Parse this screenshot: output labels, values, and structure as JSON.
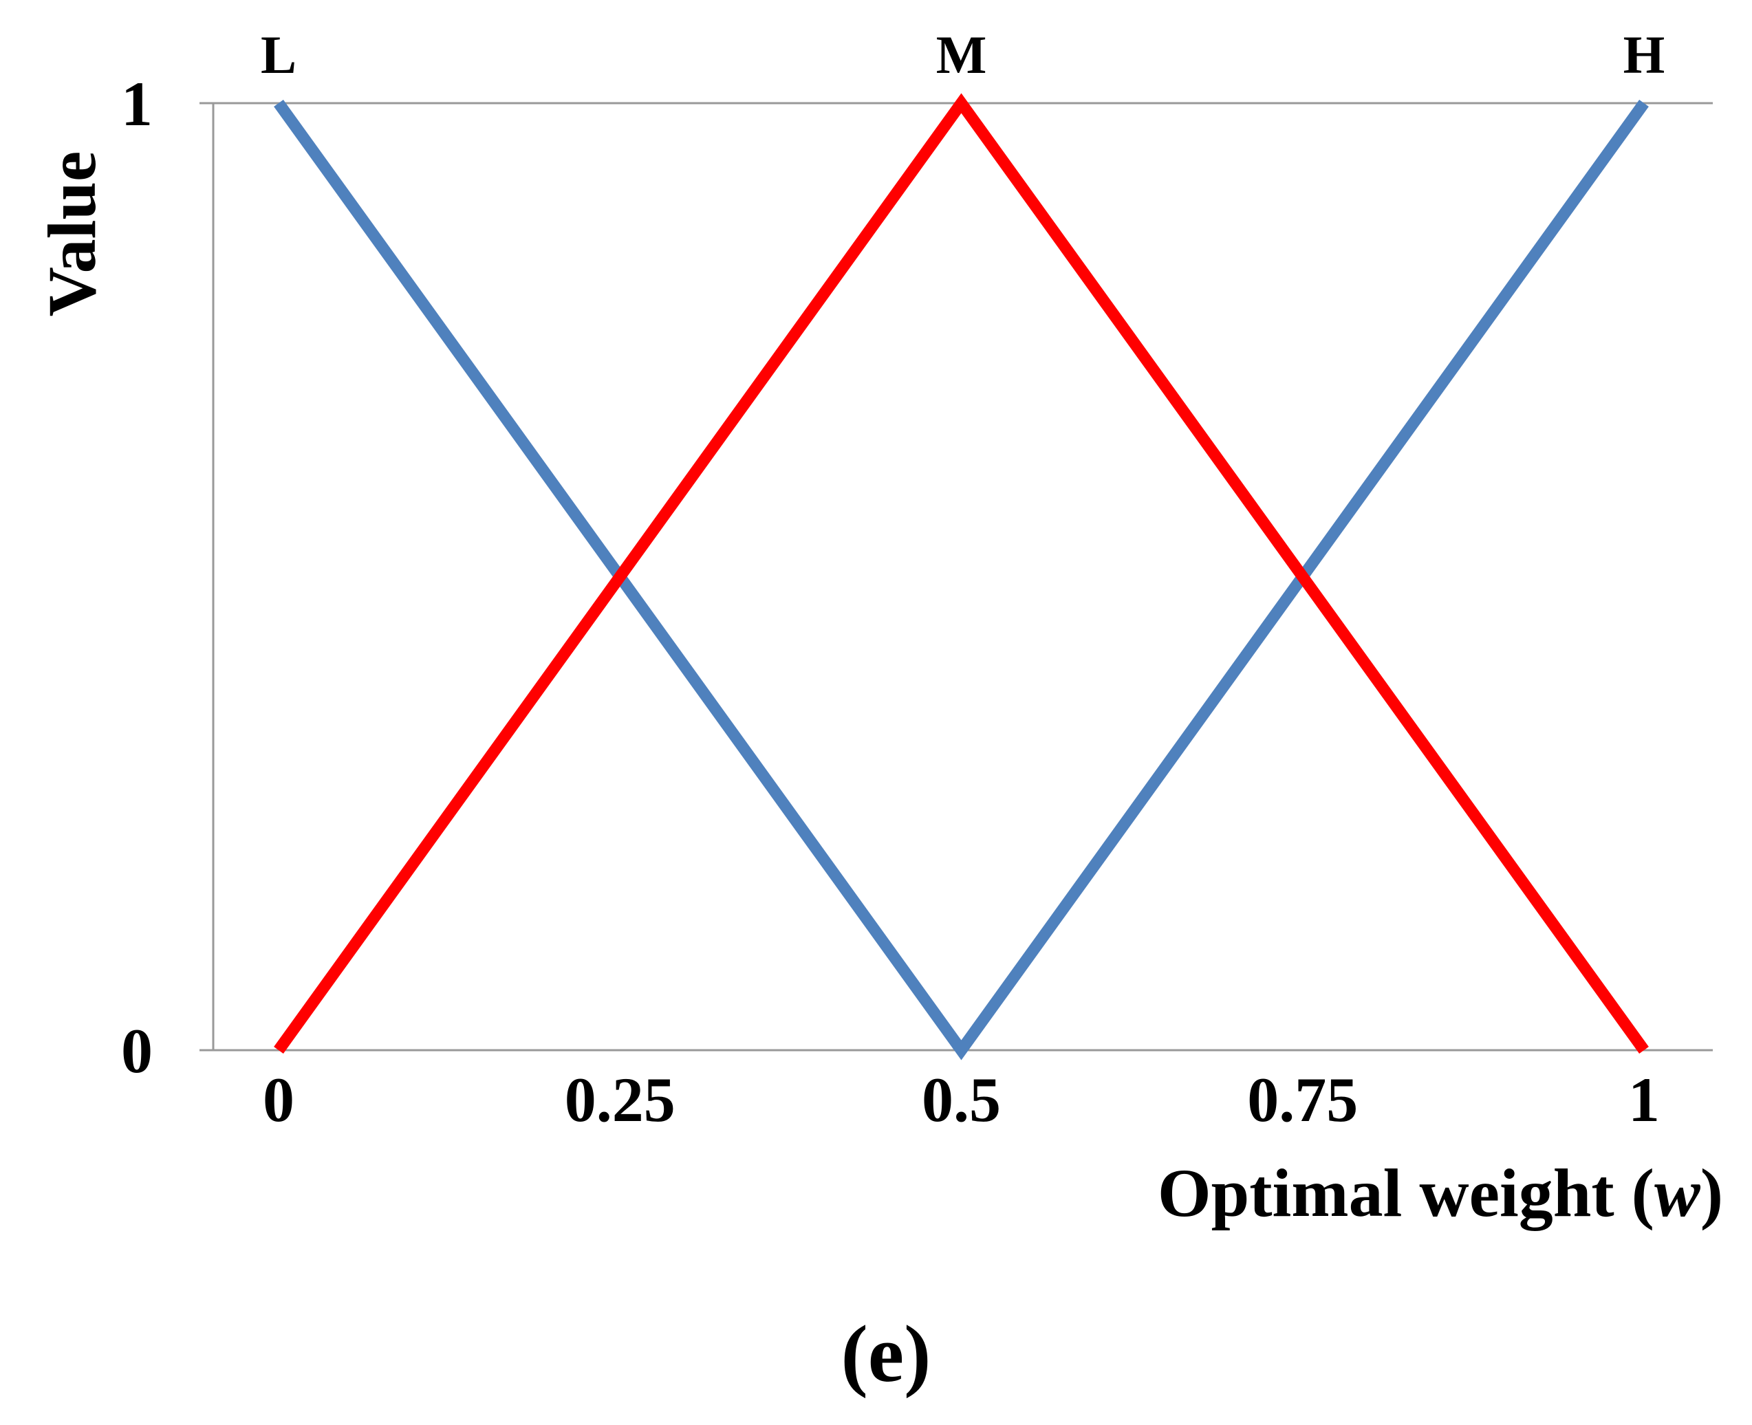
{
  "chart_data": {
    "type": "line",
    "xlabel": "Optimal weight (",
    "xlabel_var": "w",
    "xlabel_end": ")",
    "ylabel": "Value",
    "panel_label": "(e)",
    "xlim": [
      0,
      1
    ],
    "ylim": [
      0,
      1
    ],
    "x_ticks": [
      0,
      0.25,
      0.5,
      0.75,
      1
    ],
    "x_tick_labels": [
      "0",
      "0.25",
      "0.5",
      "0.75",
      "1"
    ],
    "y_ticks": [
      0,
      1
    ],
    "y_tick_labels": [
      "0",
      "1"
    ],
    "grid": "horizontal line at y = 1 only",
    "peak_labels": [
      {
        "text": "L",
        "x": 0
      },
      {
        "text": "M",
        "x": 0.5
      },
      {
        "text": "H",
        "x": 1
      }
    ],
    "series": [
      {
        "color": "#4f81bd",
        "x": [
          0,
          0.5,
          1
        ],
        "y": [
          1,
          0,
          1
        ]
      },
      {
        "color": "#ff0000",
        "x": [
          0,
          0.5,
          1
        ],
        "y": [
          0,
          1,
          0
        ]
      }
    ],
    "axis_color": "#999999"
  }
}
